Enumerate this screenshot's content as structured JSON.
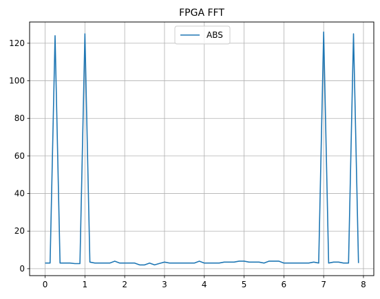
{
  "chart_data": {
    "type": "line",
    "title": "FPGA FFT",
    "xlabel": "",
    "ylabel": "",
    "xlim": [
      -0.39,
      8.26
    ],
    "ylim": [
      -3.7,
      131.3
    ],
    "xticks": [
      "0",
      "1",
      "2",
      "3",
      "4",
      "5",
      "6",
      "7",
      "8"
    ],
    "yticks": [
      "0",
      "20",
      "40",
      "60",
      "80",
      "100",
      "120"
    ],
    "grid": true,
    "legend_position": "top-center",
    "series": [
      {
        "name": "ABS",
        "color": "#1f77b4",
        "x": [
          0,
          0.125,
          0.25,
          0.375,
          0.5,
          0.625,
          0.75,
          0.875,
          1.0,
          1.125,
          1.25,
          1.375,
          1.5,
          1.625,
          1.75,
          1.875,
          2.0,
          2.125,
          2.25,
          2.375,
          2.5,
          2.625,
          2.75,
          2.875,
          3.0,
          3.125,
          3.25,
          3.375,
          3.5,
          3.625,
          3.75,
          3.875,
          4.0,
          4.125,
          4.25,
          4.375,
          4.5,
          4.625,
          4.75,
          4.875,
          5.0,
          5.125,
          5.25,
          5.375,
          5.5,
          5.625,
          5.75,
          5.875,
          6.0,
          6.125,
          6.25,
          6.375,
          6.5,
          6.625,
          6.75,
          6.875,
          7.0,
          7.125,
          7.25,
          7.375,
          7.5,
          7.625,
          7.75,
          7.875
        ],
        "values": [
          3.0,
          3.0,
          124.0,
          3.0,
          3.0,
          3.0,
          2.7,
          2.7,
          125.0,
          3.5,
          3.0,
          3.0,
          3.0,
          3.0,
          4.0,
          3.0,
          3.0,
          3.0,
          3.0,
          2.0,
          2.0,
          3.0,
          2.0,
          2.8,
          3.5,
          3.0,
          3.0,
          3.0,
          3.0,
          3.0,
          3.0,
          4.0,
          3.0,
          3.0,
          3.0,
          3.0,
          3.5,
          3.5,
          3.5,
          4.0,
          4.0,
          3.5,
          3.5,
          3.5,
          3.0,
          4.0,
          4.0,
          4.0,
          3.0,
          3.0,
          3.0,
          3.0,
          3.0,
          3.0,
          3.5,
          3.0,
          126.0,
          3.0,
          3.5,
          3.5,
          3.0,
          3.0,
          125.0,
          3.0
        ]
      }
    ]
  }
}
